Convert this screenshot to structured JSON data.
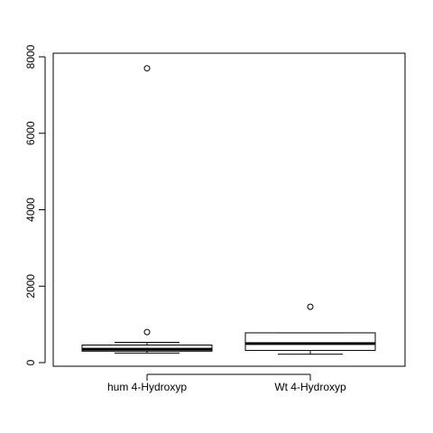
{
  "chart_data": {
    "type": "boxplot",
    "title": "",
    "xlabel": "",
    "ylabel": "",
    "ylim": [
      0,
      8000
    ],
    "yticks": [
      0,
      2000,
      4000,
      6000,
      8000
    ],
    "categories": [
      "hum 4-Hydroxyp",
      "Wt 4-Hydroxyp"
    ],
    "boxes": [
      {
        "name": "hum 4-Hydroxyp",
        "whisker_low": 250,
        "q1": 300,
        "median": 350,
        "q3": 460,
        "whisker_high": 530,
        "outliers": [
          800,
          7700
        ]
      },
      {
        "name": "Wt 4-Hydroxyp",
        "whisker_low": 220,
        "q1": 320,
        "median": 500,
        "q3": 780,
        "whisker_high": 780,
        "outliers": [
          1460
        ]
      }
    ]
  }
}
